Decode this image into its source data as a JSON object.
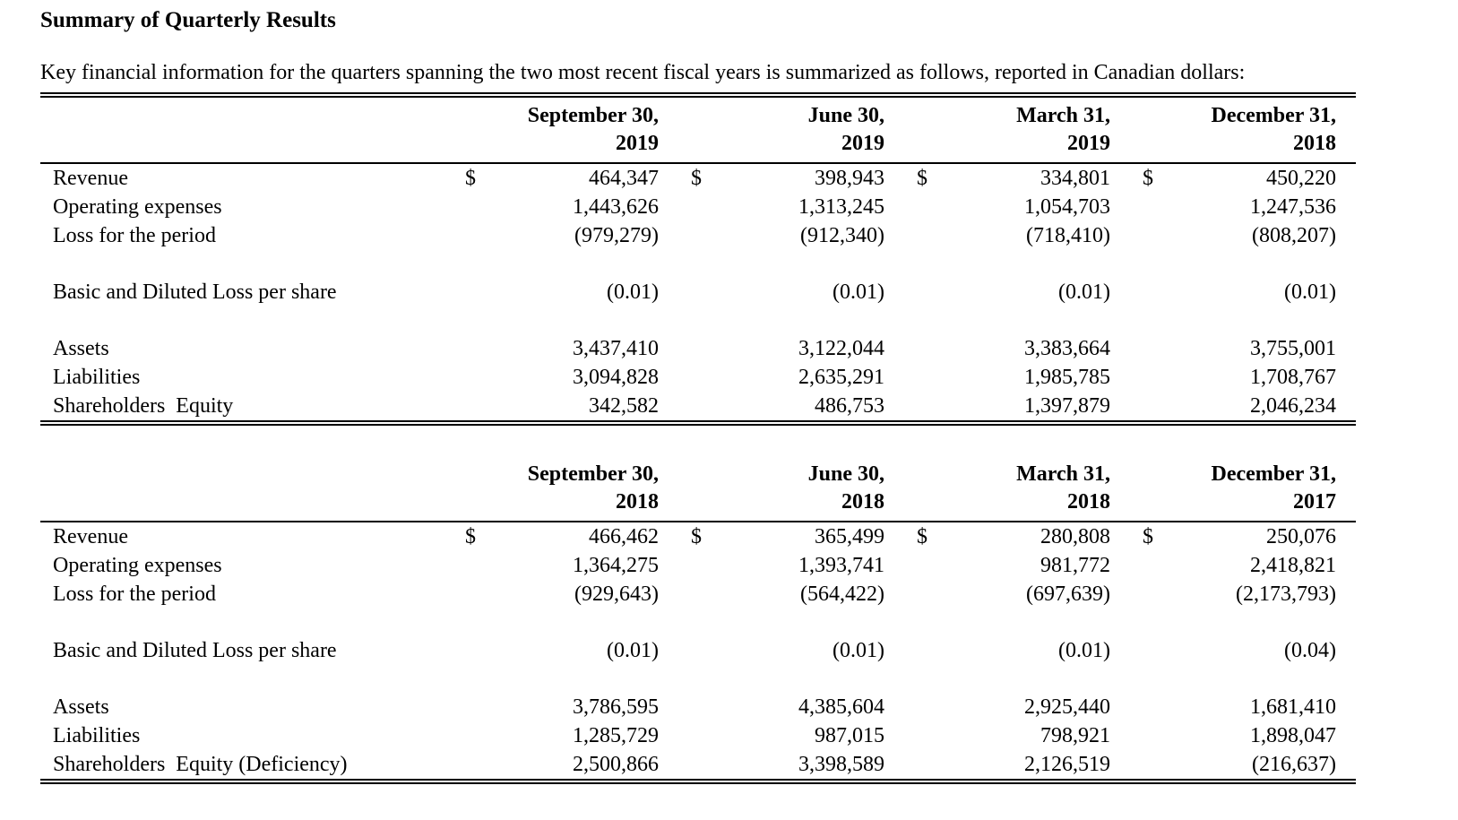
{
  "page": {
    "title": "Summary of Quarterly Results",
    "intro": "Key financial information for the quarters spanning the two most recent fiscal years is summarized as follows, reported in Canadian dollars:"
  },
  "tables": [
    {
      "name": "fiscal-2019-quarters",
      "columns": [
        {
          "line1": "September 30,",
          "line2": "2019"
        },
        {
          "line1": "June 30,",
          "line2": "2019"
        },
        {
          "line1": "March 31,",
          "line2": "2019"
        },
        {
          "line1": "December 31,",
          "line2": "2018"
        }
      ],
      "rows": [
        {
          "label": "Revenue",
          "currency": "$",
          "values": [
            "464,347",
            "398,943",
            "334,801",
            "450,220"
          ]
        },
        {
          "label": "Operating expenses",
          "values": [
            "1,443,626",
            "1,313,245",
            "1,054,703",
            "1,247,536"
          ]
        },
        {
          "label": "Loss for the period",
          "values": [
            "(979,279)",
            "(912,340)",
            "(718,410)",
            "(808,207)"
          ]
        },
        {
          "spacer": true
        },
        {
          "label": "Basic and Diluted Loss per share",
          "values": [
            "(0.01)",
            "(0.01)",
            "(0.01)",
            "(0.01)"
          ]
        },
        {
          "spacer": true
        },
        {
          "label": "Assets",
          "values": [
            "3,437,410",
            "3,122,044",
            "3,383,664",
            "3,755,001"
          ]
        },
        {
          "label": "Liabilities",
          "values": [
            "3,094,828",
            "2,635,291",
            "1,985,785",
            "1,708,767"
          ]
        },
        {
          "label": "Shareholders  Equity",
          "values": [
            "342,582",
            "486,753",
            "1,397,879",
            "2,046,234"
          ]
        }
      ]
    },
    {
      "name": "fiscal-2018-quarters",
      "columns": [
        {
          "line1": "September 30,",
          "line2": "2018"
        },
        {
          "line1": "June 30,",
          "line2": "2018"
        },
        {
          "line1": "March 31,",
          "line2": "2018"
        },
        {
          "line1": "December 31,",
          "line2": "2017"
        }
      ],
      "rows": [
        {
          "label": "Revenue",
          "currency": "$",
          "values": [
            "466,462",
            "365,499",
            "280,808",
            "250,076"
          ]
        },
        {
          "label": "Operating expenses",
          "values": [
            "1,364,275",
            "1,393,741",
            "981,772",
            "2,418,821"
          ]
        },
        {
          "label": "Loss for the period",
          "values": [
            "(929,643)",
            "(564,422)",
            "(697,639)",
            "(2,173,793)"
          ]
        },
        {
          "spacer": true
        },
        {
          "label": "Basic and Diluted Loss per share",
          "values": [
            "(0.01)",
            "(0.01)",
            "(0.01)",
            "(0.04)"
          ]
        },
        {
          "spacer": true
        },
        {
          "label": "Assets",
          "values": [
            "3,786,595",
            "4,385,604",
            "2,925,440",
            "1,681,410"
          ]
        },
        {
          "label": "Liabilities",
          "values": [
            "1,285,729",
            "987,015",
            "798,921",
            "1,898,047"
          ]
        },
        {
          "label": "Shareholders  Equity (Deficiency)",
          "values": [
            "2,500,866",
            "3,398,589",
            "2,126,519",
            "(216,637)"
          ]
        }
      ]
    }
  ]
}
